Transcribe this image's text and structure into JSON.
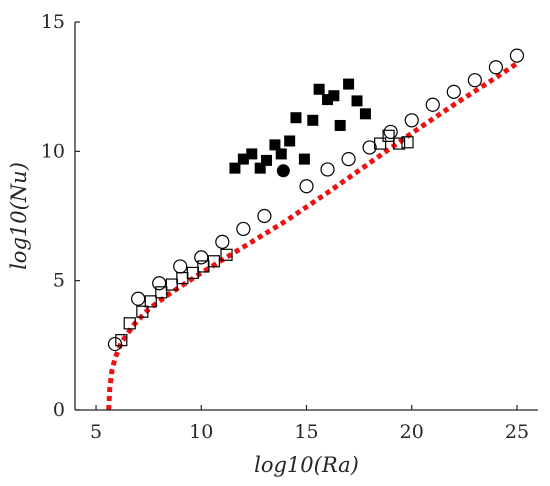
{
  "chart_data": {
    "type": "scatter",
    "title": "",
    "xlabel": "log10(Ra)",
    "ylabel": "log10(Nu)",
    "xlim": [
      4,
      26
    ],
    "ylim": [
      0,
      15
    ],
    "xticks": [
      5,
      10,
      15,
      20,
      25
    ],
    "yticks": [
      0,
      5,
      10,
      15
    ],
    "grid": false,
    "colors": {
      "axis": "#262626",
      "markers": "#000000",
      "fit_line": "#ee1111"
    },
    "series": [
      {
        "marker": "open-circle",
        "points": [
          [
            5.9,
            2.55
          ],
          [
            7.0,
            4.3
          ],
          [
            8.0,
            4.9
          ],
          [
            9.0,
            5.55
          ],
          [
            10.0,
            5.9
          ],
          [
            11.0,
            6.5
          ],
          [
            12.0,
            7.0
          ],
          [
            13.0,
            7.5
          ],
          [
            15.0,
            8.65
          ],
          [
            16.0,
            9.3
          ],
          [
            17.0,
            9.7
          ],
          [
            18.0,
            10.15
          ],
          [
            19.0,
            10.75
          ],
          [
            20.0,
            11.2
          ],
          [
            21.0,
            11.8
          ],
          [
            22.0,
            12.3
          ],
          [
            23.0,
            12.75
          ],
          [
            24.0,
            13.25
          ],
          [
            25.0,
            13.7
          ]
        ]
      },
      {
        "marker": "open-square",
        "points": [
          [
            6.2,
            2.7
          ],
          [
            6.6,
            3.35
          ],
          [
            7.2,
            3.8
          ],
          [
            7.6,
            4.2
          ],
          [
            8.1,
            4.55
          ],
          [
            8.6,
            4.85
          ],
          [
            9.1,
            5.1
          ],
          [
            9.6,
            5.3
          ],
          [
            10.1,
            5.55
          ],
          [
            10.6,
            5.75
          ],
          [
            11.2,
            6.0
          ],
          [
            18.5,
            10.3
          ],
          [
            18.9,
            10.6
          ],
          [
            19.4,
            10.3
          ],
          [
            19.8,
            10.35
          ]
        ]
      },
      {
        "marker": "filled-square",
        "points": [
          [
            11.6,
            9.35
          ],
          [
            12.0,
            9.7
          ],
          [
            12.4,
            9.9
          ],
          [
            12.8,
            9.35
          ],
          [
            13.1,
            9.65
          ],
          [
            13.5,
            10.25
          ],
          [
            13.8,
            9.9
          ],
          [
            14.2,
            10.4
          ],
          [
            14.5,
            11.3
          ],
          [
            14.9,
            9.7
          ],
          [
            15.3,
            11.2
          ],
          [
            15.6,
            12.4
          ],
          [
            16.0,
            12.0
          ],
          [
            16.3,
            12.15
          ],
          [
            16.6,
            11.0
          ],
          [
            17.0,
            12.6
          ],
          [
            17.4,
            11.95
          ],
          [
            17.8,
            11.45
          ]
        ]
      },
      {
        "marker": "filled-circle",
        "points": [
          [
            13.9,
            9.25
          ]
        ]
      },
      {
        "marker": "red-dotted-line",
        "points": [
          [
            5.6,
            0.0
          ],
          [
            5.65,
            0.8
          ],
          [
            5.75,
            1.5
          ],
          [
            5.9,
            2.0
          ],
          [
            6.2,
            2.6
          ],
          [
            6.8,
            3.3
          ],
          [
            7.5,
            3.9
          ],
          [
            8.5,
            4.5
          ],
          [
            10.0,
            5.3
          ],
          [
            12.0,
            6.3
          ],
          [
            14.0,
            7.3
          ],
          [
            16.0,
            8.4
          ],
          [
            18.0,
            9.55
          ],
          [
            20.0,
            10.7
          ],
          [
            22.0,
            11.8
          ],
          [
            24.0,
            12.85
          ],
          [
            25.0,
            13.4
          ]
        ]
      }
    ]
  }
}
